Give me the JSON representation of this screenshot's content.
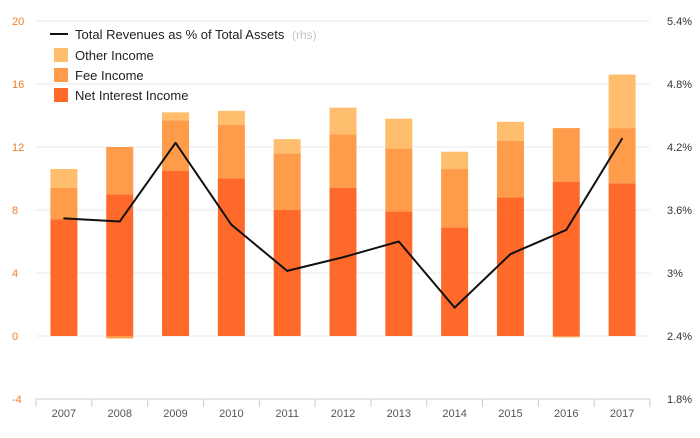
{
  "chart_data": {
    "type": "bar",
    "stacked": true,
    "categories": [
      "2007",
      "2008",
      "2009",
      "2010",
      "2011",
      "2012",
      "2013",
      "2014",
      "2015",
      "2016",
      "2017"
    ],
    "series": [
      {
        "name": "Net Interest Income",
        "color": "#ff6a2b",
        "values": [
          7.4,
          9.0,
          10.5,
          10.0,
          8.0,
          9.4,
          7.9,
          6.9,
          8.8,
          9.8,
          9.7
        ]
      },
      {
        "name": "Fee Income",
        "color": "#ff9c4a",
        "values": [
          2.0,
          3.0,
          3.2,
          3.4,
          3.6,
          3.4,
          4.0,
          3.7,
          3.6,
          3.4,
          3.5
        ]
      },
      {
        "name": "Other Income",
        "color": "#ffbe6d",
        "values": [
          1.2,
          0.0,
          0.5,
          0.9,
          0.9,
          1.7,
          1.9,
          1.1,
          1.2,
          0.0,
          3.4
        ]
      }
    ],
    "negative_values": {
      "series": "Fee Income",
      "values": [
        0,
        -0.15,
        0,
        0,
        0,
        0,
        0,
        0,
        0,
        -0.08,
        0
      ]
    },
    "line_series": {
      "name": "Total Revenues as % of Total Assets",
      "axis_note": "(rhs)",
      "color": "#111111",
      "values": [
        3.52,
        3.49,
        4.24,
        3.46,
        3.02,
        3.15,
        3.3,
        2.67,
        3.18,
        3.41,
        4.28
      ]
    },
    "y_left": {
      "ylim": [
        -4,
        20
      ],
      "ticks": [
        "-4",
        "0",
        "4",
        "8",
        "12",
        "16",
        "20"
      ]
    },
    "y_right": {
      "ylim": [
        1.8,
        5.4
      ],
      "ticks": [
        "1.8%",
        "2.4%",
        "3%",
        "3.6%",
        "4.2%",
        "4.8%",
        "5.4%"
      ]
    },
    "grid": true,
    "legend_position": "top-left"
  }
}
